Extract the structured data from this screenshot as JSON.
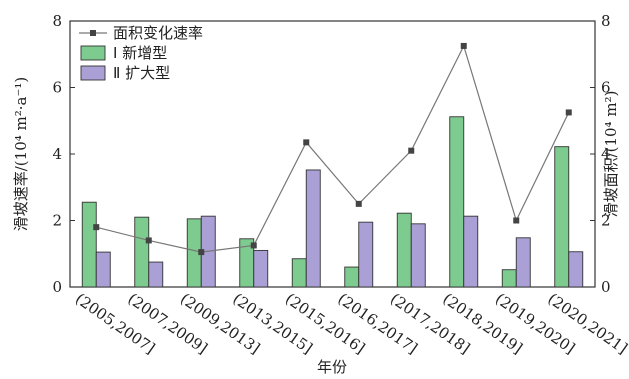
{
  "chart_data": {
    "type": "bar",
    "categories": [
      "(2005,2007]",
      "(2007,2009]",
      "(2009,2013]",
      "(2013,2015]",
      "(2015,2016]",
      "(2016,2017]",
      "(2017,2018]",
      "(2018,2019]",
      "(2019,2020]",
      "(2020,2021]"
    ],
    "series": [
      {
        "name": "Ⅰ 新增型",
        "kind": "bar",
        "axis": "right",
        "color": "#7ecb8f",
        "values": [
          2.55,
          2.1,
          2.05,
          1.45,
          0.85,
          0.6,
          2.22,
          5.12,
          0.52,
          4.22
        ]
      },
      {
        "name": "Ⅱ 扩大型",
        "kind": "bar",
        "axis": "right",
        "color": "#aaa0d6",
        "values": [
          1.05,
          0.75,
          2.13,
          1.1,
          3.52,
          1.95,
          1.9,
          2.13,
          1.48,
          1.06
        ]
      },
      {
        "name": "面积变化速率",
        "kind": "line",
        "axis": "left",
        "color": "#555555",
        "values": [
          1.8,
          1.4,
          1.05,
          1.25,
          4.35,
          2.5,
          4.1,
          7.25,
          2.0,
          5.25
        ]
      }
    ],
    "xlabel": "年份",
    "ylabel_left": "滑坡速率/(10⁴ m²·a⁻¹)",
    "ylabel_right": "滑坡面积/(10⁴ m²)",
    "ylim_left": [
      0,
      8
    ],
    "ylim_right": [
      0,
      8
    ],
    "yticks_left": [
      "0",
      "2",
      "4",
      "6",
      "8"
    ],
    "yticks_right": [
      "0",
      "2",
      "4",
      "6",
      "8"
    ],
    "grid": false,
    "legend_position": "top-left"
  }
}
